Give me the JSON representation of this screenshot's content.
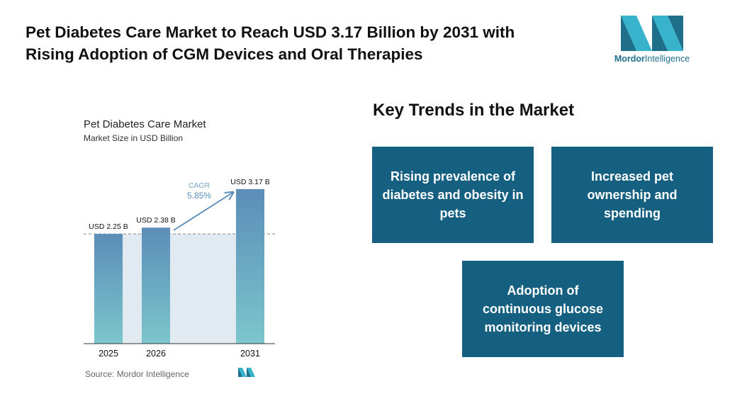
{
  "headline": {
    "line1": "Pet Diabetes Care Market to Reach USD 3.17 Billion by 2031 with",
    "line2": "Rising Adoption of CGM Devices and Oral Therapies"
  },
  "logo": {
    "brand": "Mordor",
    "brand_suffix": "Intelligence",
    "icon": "mordor-intelligence-logo-icon"
  },
  "chart_data": {
    "type": "bar",
    "title": "Pet Diabetes Care Market",
    "subtitle": "Market Size in USD Billion",
    "categories": [
      "2025",
      "2026",
      "2031"
    ],
    "values": [
      2.25,
      2.38,
      3.17
    ],
    "value_labels": [
      "USD 2.25 B",
      "USD 2.38 B",
      "USD 3.17 B"
    ],
    "cagr_label": "CAGR",
    "cagr_value": "5.85%",
    "source": "Source: Mordor Intelligence",
    "ylim": [
      0,
      3.4
    ],
    "colors": {
      "bar_top": "#5b8db8",
      "bar_bottom": "#7cc6cc",
      "band": "#e1e9f1",
      "cagr": "#5b8db8"
    }
  },
  "trends": {
    "title": "Key Trends in the Market",
    "cards": [
      {
        "text": "Rising prevalence of diabetes and obesity in pets"
      },
      {
        "text": "Increased pet ownership and spending"
      },
      {
        "text": "Adoption of continuous glucose monitoring devices"
      }
    ]
  }
}
